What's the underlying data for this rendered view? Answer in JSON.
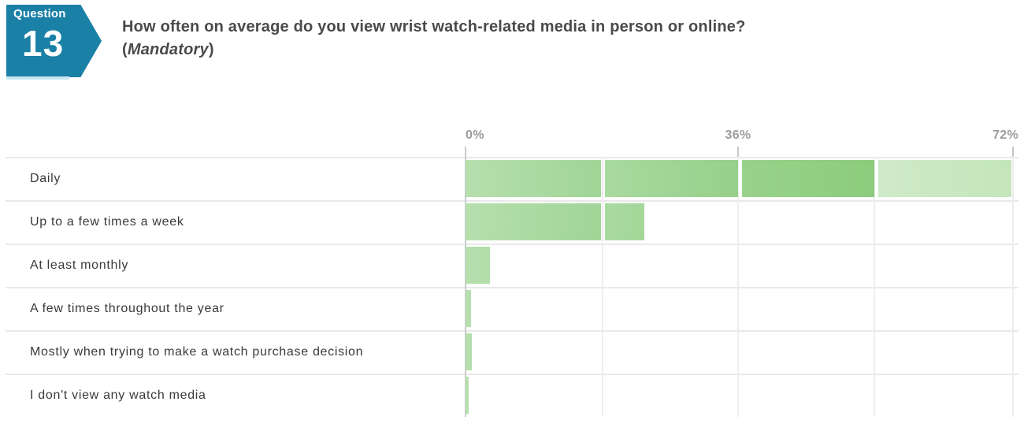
{
  "question": {
    "badge_label": "Question",
    "badge_number": "13",
    "title": "How often on average do you view wrist watch-related media in person or online?",
    "paren_open": "(",
    "mandatory": "Mandatory",
    "paren_close": ")"
  },
  "chart_data": {
    "type": "bar",
    "orientation": "horizontal",
    "title": "How often on average do you view wrist watch-related media in person or online?",
    "categories": [
      "Daily",
      "Up to a few times a week",
      "At least monthly",
      "A few times throughout the year",
      "Mostly when trying to make a watch purchase decision",
      "I don't view any watch media"
    ],
    "values": [
      72,
      23.5,
      3.2,
      0.7,
      0.8,
      0.4
    ],
    "unit": "%",
    "xlabel": "",
    "ylabel": "",
    "xlim": [
      0,
      72
    ],
    "gridline_step": 18,
    "axis_ticks": [
      "0%",
      "36%",
      "72%"
    ],
    "axis_tick_values": [
      0,
      36,
      72
    ],
    "grid": true,
    "legend": false,
    "segment_gradients": [
      [
        "#b6dfad",
        "#a0d597"
      ],
      [
        "#a9daa0",
        "#95cf89"
      ],
      [
        "#99d28b",
        "#8bcc7c"
      ],
      [
        "#cfeac8",
        "#c4e6bb"
      ]
    ]
  },
  "colors": {
    "badge_bg": "#1b80a6",
    "badge_edge": "#c9e5ef",
    "badge_text": "#ffffff",
    "title_text": "#4a4a4a",
    "row_label_text": "#3a3a3a",
    "tick_text": "#9c9c9c",
    "axis_line": "#cbcbcb",
    "gridline": "#eeeeee",
    "row_divider": "#e9e9e9",
    "bar_green": "#a5d79b"
  }
}
